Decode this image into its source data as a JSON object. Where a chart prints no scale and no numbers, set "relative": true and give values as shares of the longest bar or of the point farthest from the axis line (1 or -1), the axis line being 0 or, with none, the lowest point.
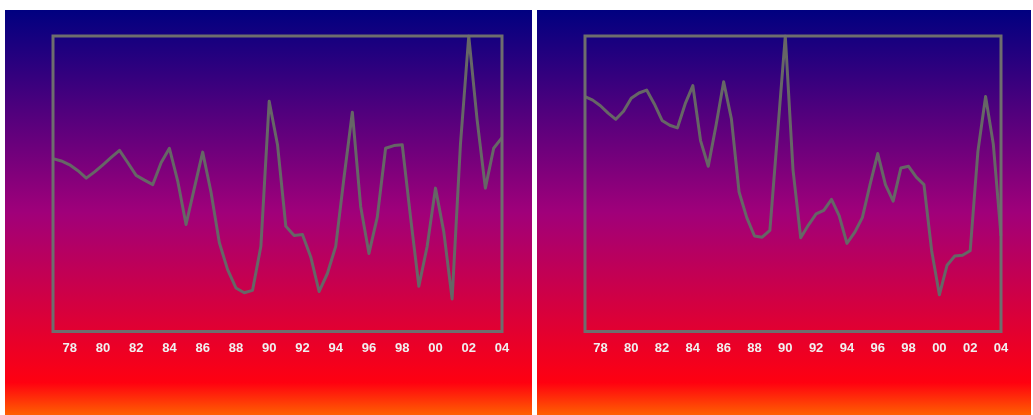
{
  "chart_data": [
    {
      "type": "line",
      "relative": true,
      "tick_labels": "x",
      "grid": false,
      "marker": "none",
      "line_style": "solid",
      "color": "#666666",
      "categories": [
        null,
        null,
        "78",
        null,
        null,
        null,
        "80",
        null,
        null,
        null,
        "82",
        null,
        null,
        null,
        "84",
        null,
        null,
        null,
        "86",
        null,
        null,
        null,
        "88",
        null,
        null,
        null,
        "90",
        null,
        null,
        null,
        "92",
        null,
        null,
        null,
        "94",
        null,
        null,
        null,
        "96",
        null,
        null,
        null,
        "98",
        null,
        null,
        null,
        "00",
        null,
        null,
        null,
        "02",
        null,
        null,
        null,
        "04"
      ],
      "values": [
        0.585,
        0.577,
        0.564,
        0.544,
        0.519,
        0.54,
        0.564,
        0.589,
        0.613,
        0.571,
        0.528,
        0.512,
        0.497,
        0.571,
        0.62,
        0.509,
        0.362,
        0.485,
        0.607,
        0.472,
        0.301,
        0.209,
        0.147,
        0.131,
        0.139,
        0.288,
        0.779,
        0.632,
        0.356,
        0.325,
        0.328,
        0.252,
        0.135,
        0.196,
        0.288,
        0.521,
        0.742,
        0.423,
        0.264,
        0.387,
        0.62,
        0.629,
        0.632,
        0.387,
        0.153,
        0.288,
        0.485,
        0.337,
        0.11,
        0.632,
        1.0,
        0.718,
        0.485,
        0.62,
        0.656
      ]
    },
    {
      "type": "line",
      "relative": true,
      "tick_labels": "x",
      "grid": false,
      "marker": "none",
      "line_style": "solid",
      "color": "#666666",
      "categories": [
        null,
        null,
        "78",
        null,
        null,
        null,
        "80",
        null,
        null,
        null,
        "82",
        null,
        null,
        null,
        "84",
        null,
        null,
        null,
        "86",
        null,
        null,
        null,
        "88",
        null,
        null,
        null,
        "90",
        null,
        null,
        null,
        "92",
        null,
        null,
        null,
        "94",
        null,
        null,
        null,
        "96",
        null,
        null,
        null,
        "98",
        null,
        null,
        null,
        "00",
        null,
        null,
        null,
        "02",
        null,
        null,
        null,
        "04"
      ],
      "values": [
        0.795,
        0.783,
        0.764,
        0.739,
        0.718,
        0.745,
        0.789,
        0.807,
        0.817,
        0.77,
        0.714,
        0.698,
        0.689,
        0.77,
        0.832,
        0.646,
        0.559,
        0.696,
        0.845,
        0.72,
        0.472,
        0.385,
        0.323,
        0.319,
        0.342,
        0.671,
        1.0,
        0.547,
        0.317,
        0.36,
        0.398,
        0.41,
        0.447,
        0.391,
        0.298,
        0.335,
        0.385,
        0.497,
        0.602,
        0.497,
        0.441,
        0.553,
        0.559,
        0.522,
        0.497,
        0.273,
        0.124,
        0.224,
        0.255,
        0.258,
        0.273,
        0.609,
        0.795,
        0.634,
        0.323
      ]
    }
  ]
}
